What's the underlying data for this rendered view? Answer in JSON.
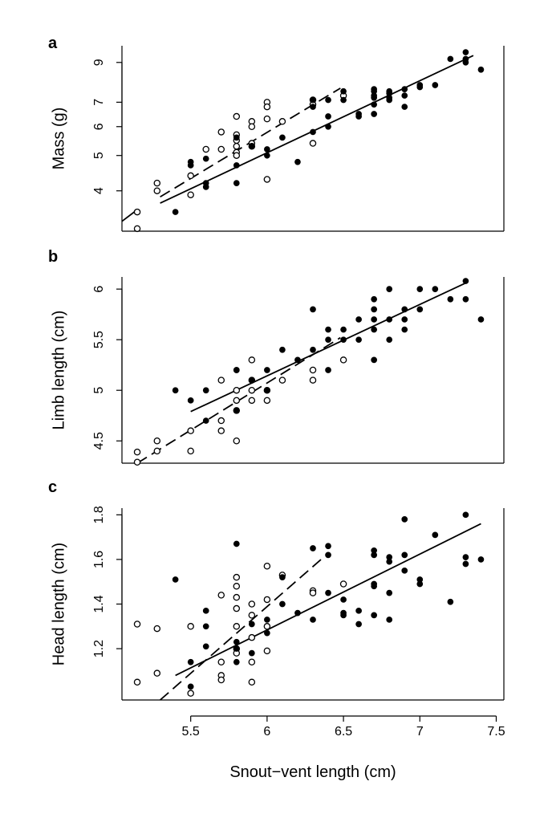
{
  "figure": {
    "xlabel": "Snout−vent length (cm)"
  },
  "chart_data": [
    {
      "panel": "a",
      "type": "scatter",
      "ylabel": "Mass (g)",
      "xlim": [
        5.05,
        7.55
      ],
      "ylim": [
        3.1,
        10.0
      ],
      "y_scale": "log",
      "xticks": [
        5.5,
        6.0,
        6.5,
        7.0,
        7.5
      ],
      "yticks": [
        4,
        5,
        6,
        7,
        9
      ],
      "grid": false,
      "series": [
        {
          "marker": "open-circle",
          "points": [
            [
              5.15,
              3.5
            ],
            [
              5.15,
              3.15
            ],
            [
              5.28,
              4.2
            ],
            [
              5.28,
              4.0
            ],
            [
              5.5,
              4.4
            ],
            [
              5.5,
              3.9
            ],
            [
              5.6,
              5.2
            ],
            [
              5.7,
              5.8
            ],
            [
              5.7,
              5.2
            ],
            [
              5.8,
              6.4
            ],
            [
              5.8,
              5.7
            ],
            [
              5.8,
              5.5
            ],
            [
              5.8,
              5.3
            ],
            [
              5.8,
              5.1
            ],
            [
              5.8,
              5.0
            ],
            [
              5.9,
              6.2
            ],
            [
              5.9,
              6.0
            ],
            [
              5.9,
              5.4
            ],
            [
              5.9,
              5.3
            ],
            [
              6.0,
              7.0
            ],
            [
              6.0,
              6.8
            ],
            [
              6.0,
              6.3
            ],
            [
              6.0,
              4.3
            ],
            [
              6.1,
              6.2
            ],
            [
              6.3,
              7.1
            ],
            [
              6.3,
              6.9
            ],
            [
              6.3,
              5.4
            ],
            [
              6.5,
              7.3
            ]
          ],
          "fit": {
            "style": "dashed",
            "x": [
              5.3,
              6.48
            ],
            "y": [
              3.85,
              7.65
            ]
          }
        },
        {
          "marker": "filled-circle",
          "points": [
            [
              5.4,
              3.5
            ],
            [
              5.5,
              4.8
            ],
            [
              5.5,
              4.7
            ],
            [
              5.6,
              4.9
            ],
            [
              5.6,
              4.2
            ],
            [
              5.6,
              4.1
            ],
            [
              5.8,
              5.6
            ],
            [
              5.8,
              4.7
            ],
            [
              5.8,
              4.2
            ],
            [
              5.9,
              5.3
            ],
            [
              6.0,
              5.2
            ],
            [
              6.0,
              5.0
            ],
            [
              6.1,
              5.6
            ],
            [
              6.2,
              4.8
            ],
            [
              6.3,
              7.1
            ],
            [
              6.3,
              6.8
            ],
            [
              6.3,
              5.8
            ],
            [
              6.4,
              7.1
            ],
            [
              6.4,
              6.4
            ],
            [
              6.4,
              6.0
            ],
            [
              6.5,
              7.5
            ],
            [
              6.5,
              7.1
            ],
            [
              6.6,
              6.5
            ],
            [
              6.6,
              6.4
            ],
            [
              6.7,
              7.6
            ],
            [
              6.7,
              7.5
            ],
            [
              6.7,
              7.3
            ],
            [
              6.7,
              7.2
            ],
            [
              6.7,
              6.9
            ],
            [
              6.7,
              6.5
            ],
            [
              6.8,
              7.5
            ],
            [
              6.8,
              7.4
            ],
            [
              6.8,
              7.2
            ],
            [
              6.8,
              7.1
            ],
            [
              6.9,
              7.6
            ],
            [
              6.9,
              7.3
            ],
            [
              6.9,
              6.8
            ],
            [
              7.0,
              7.8
            ],
            [
              7.0,
              7.7
            ],
            [
              7.1,
              7.8
            ],
            [
              7.2,
              9.2
            ],
            [
              7.3,
              9.6
            ],
            [
              7.3,
              9.2
            ],
            [
              7.3,
              9.0
            ],
            [
              7.4,
              8.6
            ]
          ],
          "fit": {
            "style": "solid",
            "x": [
              5.3,
              7.35
            ],
            "y": [
              3.7,
              9.4
            ]
          }
        }
      ],
      "extra_line": {
        "style": "solid",
        "x": [
          5.05,
          5.15
        ],
        "y": [
          3.3,
          3.55
        ]
      }
    },
    {
      "panel": "b",
      "type": "scatter",
      "ylabel": "Limb length (cm)",
      "xlim": [
        5.05,
        7.55
      ],
      "ylim": [
        4.28,
        6.12
      ],
      "xticks": [
        5.5,
        6.0,
        6.5,
        7.0,
        7.5
      ],
      "yticks": [
        4.5,
        5.0,
        5.5,
        6.0
      ],
      "grid": false,
      "series": [
        {
          "marker": "open-circle",
          "points": [
            [
              5.15,
              4.39
            ],
            [
              5.15,
              4.29
            ],
            [
              5.28,
              4.5
            ],
            [
              5.28,
              4.4
            ],
            [
              5.5,
              4.6
            ],
            [
              5.5,
              4.4
            ],
            [
              5.7,
              5.1
            ],
            [
              5.7,
              4.7
            ],
            [
              5.7,
              4.6
            ],
            [
              5.8,
              5.0
            ],
            [
              5.8,
              4.9
            ],
            [
              5.8,
              4.8
            ],
            [
              5.8,
              4.5
            ],
            [
              5.9,
              5.3
            ],
            [
              5.9,
              5.1
            ],
            [
              5.9,
              5.0
            ],
            [
              5.9,
              4.9
            ],
            [
              6.0,
              5.0
            ],
            [
              6.0,
              4.9
            ],
            [
              6.1,
              5.1
            ],
            [
              6.3,
              5.2
            ],
            [
              6.3,
              5.1
            ],
            [
              6.5,
              5.3
            ]
          ],
          "fit": {
            "style": "dashed",
            "x": [
              5.15,
              6.48
            ],
            "y": [
              4.28,
              5.52
            ]
          }
        },
        {
          "marker": "filled-circle",
          "points": [
            [
              5.4,
              5.0
            ],
            [
              5.5,
              4.9
            ],
            [
              5.6,
              5.0
            ],
            [
              5.6,
              4.7
            ],
            [
              5.8,
              5.2
            ],
            [
              5.8,
              5.2
            ],
            [
              5.8,
              4.8
            ],
            [
              5.9,
              5.1
            ],
            [
              5.9,
              5.1
            ],
            [
              6.0,
              5.2
            ],
            [
              6.0,
              5.0
            ],
            [
              6.1,
              5.4
            ],
            [
              6.2,
              5.3
            ],
            [
              6.3,
              5.8
            ],
            [
              6.3,
              5.4
            ],
            [
              6.4,
              5.6
            ],
            [
              6.4,
              5.5
            ],
            [
              6.4,
              5.2
            ],
            [
              6.5,
              5.6
            ],
            [
              6.5,
              5.5
            ],
            [
              6.6,
              5.7
            ],
            [
              6.6,
              5.5
            ],
            [
              6.7,
              5.9
            ],
            [
              6.7,
              5.8
            ],
            [
              6.7,
              5.7
            ],
            [
              6.7,
              5.6
            ],
            [
              6.7,
              5.3
            ],
            [
              6.8,
              6.0
            ],
            [
              6.8,
              5.7
            ],
            [
              6.8,
              5.5
            ],
            [
              6.9,
              5.8
            ],
            [
              6.9,
              5.7
            ],
            [
              6.9,
              5.6
            ],
            [
              7.0,
              6.0
            ],
            [
              7.0,
              5.8
            ],
            [
              7.1,
              6.0
            ],
            [
              7.2,
              5.9
            ],
            [
              7.3,
              6.08
            ],
            [
              7.3,
              5.9
            ],
            [
              7.4,
              5.7
            ]
          ],
          "fit": {
            "style": "solid",
            "x": [
              5.5,
              7.3
            ],
            "y": [
              4.79,
              6.06
            ]
          }
        }
      ]
    },
    {
      "panel": "c",
      "type": "scatter",
      "ylabel": "Head length (cm)",
      "xlim": [
        5.05,
        7.55
      ],
      "ylim": [
        0.97,
        1.83
      ],
      "xticks": [
        5.5,
        6.0,
        6.5,
        7.0,
        7.5
      ],
      "yticks": [
        1.2,
        1.4,
        1.6,
        1.8
      ],
      "grid": false,
      "series": [
        {
          "marker": "open-circle",
          "points": [
            [
              5.15,
              1.31
            ],
            [
              5.15,
              1.05
            ],
            [
              5.28,
              1.29
            ],
            [
              5.28,
              1.09
            ],
            [
              5.5,
              1.3
            ],
            [
              5.5,
              1.0
            ],
            [
              5.7,
              1.44
            ],
            [
              5.7,
              1.14
            ],
            [
              5.7,
              1.08
            ],
            [
              5.7,
              1.06
            ],
            [
              5.8,
              1.52
            ],
            [
              5.8,
              1.48
            ],
            [
              5.8,
              1.43
            ],
            [
              5.8,
              1.38
            ],
            [
              5.8,
              1.3
            ],
            [
              5.8,
              1.2
            ],
            [
              5.8,
              1.18
            ],
            [
              5.9,
              1.4
            ],
            [
              5.9,
              1.35
            ],
            [
              5.9,
              1.25
            ],
            [
              5.9,
              1.14
            ],
            [
              5.9,
              1.05
            ],
            [
              6.0,
              1.57
            ],
            [
              6.0,
              1.42
            ],
            [
              6.0,
              1.3
            ],
            [
              6.0,
              1.19
            ],
            [
              6.1,
              1.53
            ],
            [
              6.3,
              1.46
            ],
            [
              6.3,
              1.45
            ],
            [
              6.5,
              1.49
            ]
          ],
          "fit": {
            "style": "dashed",
            "x": [
              5.3,
              6.37
            ],
            "y": [
              0.97,
              1.61
            ]
          }
        },
        {
          "marker": "filled-circle",
          "points": [
            [
              5.4,
              1.51
            ],
            [
              5.5,
              1.14
            ],
            [
              5.5,
              1.03
            ],
            [
              5.6,
              1.37
            ],
            [
              5.6,
              1.3
            ],
            [
              5.6,
              1.21
            ],
            [
              5.8,
              1.67
            ],
            [
              5.8,
              1.23
            ],
            [
              5.8,
              1.2
            ],
            [
              5.8,
              1.14
            ],
            [
              5.9,
              1.31
            ],
            [
              5.9,
              1.18
            ],
            [
              6.0,
              1.33
            ],
            [
              6.0,
              1.27
            ],
            [
              6.1,
              1.4
            ],
            [
              6.1,
              1.52
            ],
            [
              6.2,
              1.36
            ],
            [
              6.3,
              1.65
            ],
            [
              6.3,
              1.33
            ],
            [
              6.4,
              1.66
            ],
            [
              6.4,
              1.62
            ],
            [
              6.4,
              1.45
            ],
            [
              6.5,
              1.42
            ],
            [
              6.5,
              1.36
            ],
            [
              6.5,
              1.35
            ],
            [
              6.6,
              1.37
            ],
            [
              6.6,
              1.31
            ],
            [
              6.7,
              1.64
            ],
            [
              6.7,
              1.62
            ],
            [
              6.7,
              1.49
            ],
            [
              6.7,
              1.48
            ],
            [
              6.7,
              1.35
            ],
            [
              6.8,
              1.61
            ],
            [
              6.8,
              1.59
            ],
            [
              6.8,
              1.45
            ],
            [
              6.8,
              1.33
            ],
            [
              6.9,
              1.78
            ],
            [
              6.9,
              1.62
            ],
            [
              6.9,
              1.55
            ],
            [
              7.0,
              1.51
            ],
            [
              7.0,
              1.49
            ],
            [
              7.1,
              1.71
            ],
            [
              7.2,
              1.41
            ],
            [
              7.3,
              1.8
            ],
            [
              7.3,
              1.61
            ],
            [
              7.3,
              1.58
            ],
            [
              7.4,
              1.6
            ]
          ],
          "fit": {
            "style": "solid",
            "x": [
              5.4,
              7.4
            ],
            "y": [
              1.08,
              1.76
            ]
          }
        }
      ]
    }
  ]
}
